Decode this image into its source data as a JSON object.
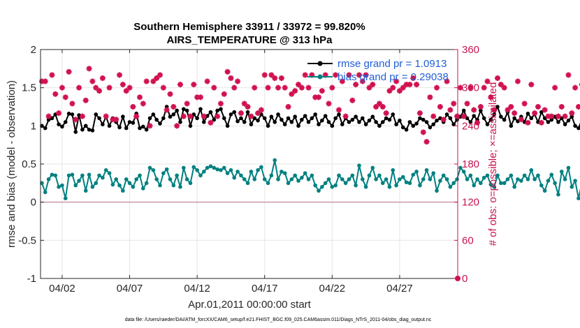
{
  "colors": {
    "rmse": "#000000",
    "bias": "#008080",
    "obs": "#d1124f",
    "right_axis": "#c8124f",
    "zero_line": "#c89aa4",
    "legend_text": "#1f5fd6",
    "grid": "#e6e6e6"
  },
  "chart_data": {
    "type": "line",
    "title": "Southern Hemisphere 33911 / 33972 = 99.820%",
    "subtitle": "AIRS_TEMPERATURE @ 313 hPa",
    "xlabel": "Apr.01,2011 00:00:00 start",
    "ylabel": "rmse and bias (model - observation)",
    "y2label": "# of obs: o=possible; ×=assimilated",
    "xlim": [
      0.4,
      31.3
    ],
    "ylim": [
      -1,
      2
    ],
    "y2lim": [
      0,
      360
    ],
    "x_ticks": [
      {
        "value": 2,
        "label": "04/02"
      },
      {
        "value": 7,
        "label": "04/07"
      },
      {
        "value": 12,
        "label": "04/12"
      },
      {
        "value": 17,
        "label": "04/17"
      },
      {
        "value": 22,
        "label": "04/22"
      },
      {
        "value": 27,
        "label": "04/27"
      }
    ],
    "y_ticks": [
      {
        "value": 2,
        "label": "2"
      },
      {
        "value": 1.5,
        "label": "1.5"
      },
      {
        "value": 1,
        "label": "1"
      },
      {
        "value": 0.5,
        "label": "0.5"
      },
      {
        "value": 0,
        "label": "0"
      },
      {
        "value": -0.5,
        "label": "-0.5"
      },
      {
        "value": -1,
        "label": "-1"
      }
    ],
    "y2_ticks": [
      {
        "value": 360,
        "label": "360"
      },
      {
        "value": 300,
        "label": "300"
      },
      {
        "value": 240,
        "label": "240"
      },
      {
        "value": 180,
        "label": "180"
      },
      {
        "value": 120,
        "label": "120"
      },
      {
        "value": 60,
        "label": "60"
      },
      {
        "value": 0,
        "label": "0"
      }
    ],
    "grid": true,
    "legend_position": "top-right",
    "series": [
      {
        "name": "rmse grand pr = 1.0913",
        "axis": "left",
        "marker": "filled-circle",
        "x_start": 0.5,
        "x_step": 0.25,
        "values": [
          1.0,
          0.97,
          1.08,
          1.1,
          1.15,
          1.02,
          0.99,
          1.05,
          1.16,
          1.15,
          0.92,
          1.14,
          0.95,
          1.0,
          0.95,
          0.94,
          1.15,
          1.1,
          1.02,
          1.12,
          1.0,
          1.1,
          1.05,
          0.98,
          1.12,
          0.97,
          1.05,
          1.04,
          1.16,
          0.97,
          0.99,
          0.95,
          1.1,
          1.15,
          1.08,
          1.03,
          1.1,
          1.25,
          1.12,
          1.15,
          1.2,
          1.05,
          1.22,
          1.2,
          1.0,
          1.15,
          1.1,
          1.22,
          1.05,
          1.13,
          1.18,
          1.08,
          1.2,
          1.22,
          1.1,
          1.0,
          1.15,
          1.18,
          1.06,
          1.1,
          1.05,
          1.18,
          1.02,
          1.1,
          1.07,
          1.15,
          1.1,
          1.0,
          1.12,
          1.05,
          1.15,
          1.08,
          1.02,
          1.1,
          1.05,
          1.12,
          1.0,
          1.08,
          1.13,
          1.05,
          1.1,
          1.15,
          1.02,
          1.07,
          1.13,
          1.05,
          1.0,
          1.1,
          1.15,
          1.02,
          1.1,
          1.05,
          1.08,
          1.12,
          1.05,
          1.1,
          1.02,
          1.07,
          1.12,
          1.05,
          1.0,
          1.05,
          1.1,
          1.08,
          1.15,
          1.02,
          1.07,
          0.98,
          0.95,
          1.05,
          1.0,
          1.03,
          1.1,
          1.08,
          1.05,
          0.98,
          1.02,
          1.07,
          1.1,
          1.05,
          1.15,
          1.1,
          1.02,
          1.08,
          1.12,
          1.2,
          1.1,
          1.05,
          1.13,
          1.08,
          1.2,
          1.1,
          1.02,
          1.08,
          1.15,
          1.25,
          1.12,
          1.08,
          1.18,
          1.0,
          1.1,
          1.06,
          1.12,
          1.05,
          1.16,
          1.1,
          1.15,
          1.05,
          1.18,
          1.1,
          1.05,
          1.08,
          1.12,
          1.05,
          1.1,
          1.02,
          1.07,
          1.12,
          1.0,
          0.97,
          1.08,
          1.1,
          1.04
        ]
      },
      {
        "name": "bias grand pr = 0.29038",
        "axis": "left",
        "marker": "filled-circle",
        "x_start": 0.5,
        "x_step": 0.25,
        "values": [
          0.25,
          0.13,
          0.3,
          0.36,
          0.35,
          0.2,
          0.22,
          0.05,
          0.35,
          0.36,
          0.22,
          0.28,
          0.35,
          0.15,
          0.36,
          0.2,
          0.25,
          0.35,
          0.32,
          0.42,
          0.38,
          0.23,
          0.3,
          0.22,
          0.15,
          0.3,
          0.25,
          0.2,
          0.3,
          0.35,
          0.18,
          0.25,
          0.45,
          0.42,
          0.3,
          0.22,
          0.38,
          0.43,
          0.3,
          0.22,
          0.35,
          0.2,
          0.45,
          0.3,
          0.25,
          0.46,
          0.42,
          0.35,
          0.4,
          0.45,
          0.47,
          0.45,
          0.43,
          0.42,
          0.45,
          0.38,
          0.42,
          0.32,
          0.4,
          0.35,
          0.3,
          0.25,
          0.4,
          0.3,
          0.42,
          0.46,
          0.3,
          0.25,
          0.35,
          0.55,
          0.3,
          0.4,
          0.38,
          0.25,
          0.3,
          0.35,
          0.28,
          0.32,
          0.38,
          0.3,
          0.35,
          0.22,
          0.15,
          0.2,
          0.25,
          0.3,
          0.2,
          0.22,
          0.35,
          0.3,
          0.25,
          0.3,
          0.35,
          0.22,
          0.48,
          0.3,
          0.2,
          0.35,
          0.45,
          0.3,
          0.35,
          0.25,
          0.3,
          0.2,
          0.42,
          0.22,
          0.3,
          0.33,
          0.26,
          0.25,
          0.36,
          0.4,
          0.22,
          0.3,
          0.42,
          0.3,
          0.38,
          0.15,
          0.28,
          0.35,
          0.3,
          0.2,
          0.25,
          0.3,
          0.45,
          0.4,
          0.3,
          0.35,
          0.22,
          0.3,
          0.25,
          0.32,
          0.35,
          0.23,
          0.2,
          0.35,
          0.25,
          0.25,
          0.3,
          0.35,
          0.2,
          0.3,
          0.28,
          0.35,
          0.3,
          0.42,
          0.3,
          0.35,
          0.22,
          0.15,
          0.28,
          0.36,
          0.25,
          0.1,
          0.4,
          0.3,
          0.45,
          0.2,
          0.28,
          0.05,
          0.25,
          0.46
        ]
      },
      {
        "name": "# of obs assimilated",
        "axis": "right",
        "marker": "asterisk",
        "x_start": 0.5,
        "x_step": 0.25,
        "values": [
          310,
          310,
          255,
          320,
          290,
          260,
          300,
          285,
          325,
          275,
          250,
          300,
          255,
          280,
          330,
          310,
          300,
          295,
          315,
          255,
          300,
          250,
          250,
          320,
          305,
          295,
          300,
          270,
          255,
          285,
          275,
          310,
          240,
          310,
          315,
          320,
          300,
          265,
          290,
          270,
          240,
          305,
          255,
          275,
          255,
          305,
          285,
          285,
          255,
          310,
          245,
          300,
          255,
          275,
          290,
          325,
          315,
          300,
          310,
          260,
          275,
          270,
          255,
          300,
          260,
          265,
          320,
          300,
          320,
          315,
          300,
          315,
          300,
          270,
          290,
          295,
          305,
          300,
          320,
          300,
          320,
          285,
          285,
          295,
          320,
          275,
          300,
          320,
          265,
          310,
          255,
          320,
          280,
          305,
          320,
          310,
          320,
          300,
          305,
          270,
          275,
          270,
          260,
          295,
          300,
          310,
          295,
          300,
          305,
          305,
          315,
          305,
          260,
          230,
          215,
          285,
          255,
          300,
          270,
          250,
          310,
          265,
          275,
          255,
          300,
          255,
          275,
          300,
          265,
          245,
          270,
          300,
          310,
          285,
          265,
          315,
          305,
          300,
          265,
          270,
          260,
          310,
          250,
          275,
          245,
          305,
          260,
          270,
          245,
          265,
          255,
          255,
          300,
          255,
          270,
          255,
          320,
          260,
          300,
          270,
          305,
          325,
          255
        ]
      },
      {
        "name": "# of obs possible",
        "axis": "right",
        "marker": "open-circle",
        "x_start": 0.5,
        "x_step": 0.25,
        "values": []
      }
    ],
    "zero_line": 0
  },
  "footnote": "data file: /Users/raeder/DAI/ATM_forcXX/CAM6_setup/f.e21.FHIST_BGC.f09_025.CAM6assim.011/Diags_NTrS_2011-04/obs_diag_output.nc"
}
